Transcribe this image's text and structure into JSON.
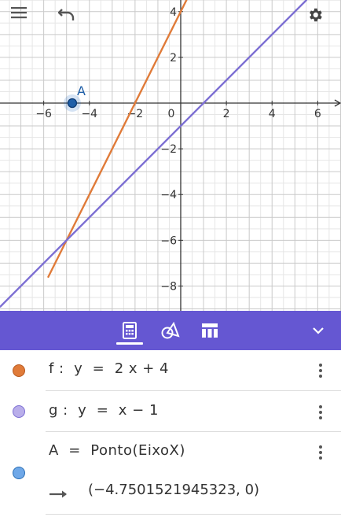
{
  "top_bar": {
    "menu_icon": "hamburger-menu-icon",
    "undo_icon": "undo-icon",
    "settings_icon": "gear-icon"
  },
  "chart_data": {
    "type": "line",
    "xlim": [
      -7.9,
      6.9
    ],
    "ylim": [
      -9.1,
      4.5
    ],
    "grid": true,
    "x_ticks": [
      "−6",
      "−4",
      "−2",
      "0",
      "2",
      "4",
      "6"
    ],
    "y_ticks": [
      "4",
      "2",
      "−2",
      "−4",
      "−6",
      "−8"
    ],
    "series": [
      {
        "name": "f",
        "color": "#e07b39",
        "x": [
          -5.8,
          0.25
        ],
        "y": [
          -7.6,
          4.5
        ]
      },
      {
        "name": "g",
        "color": "#7d6fd3",
        "x": [
          -7.9,
          5.5
        ],
        "y": [
          -8.9,
          4.5
        ]
      }
    ],
    "points": [
      {
        "name": "A",
        "x": -4.75,
        "y": 0,
        "color": "#1565c0"
      }
    ]
  },
  "toolbar": {
    "bg_color": "#6557d2",
    "tools": [
      "calculator-icon",
      "geometry-tools-icon",
      "table-icon"
    ],
    "collapse_icon": "chevron-down-icon"
  },
  "algebra": {
    "rows": [
      {
        "dot_color": "#e07b39",
        "expr": "f :  y  =  2 x + 4"
      },
      {
        "dot_color": "#b9aeea",
        "expr": "g :  y  =  x − 1"
      },
      {
        "dot_color": "#6fa8e8",
        "expr": "A  =  Ponto(EixoX)",
        "output": "(−4.7501521945323, 0)"
      }
    ]
  }
}
